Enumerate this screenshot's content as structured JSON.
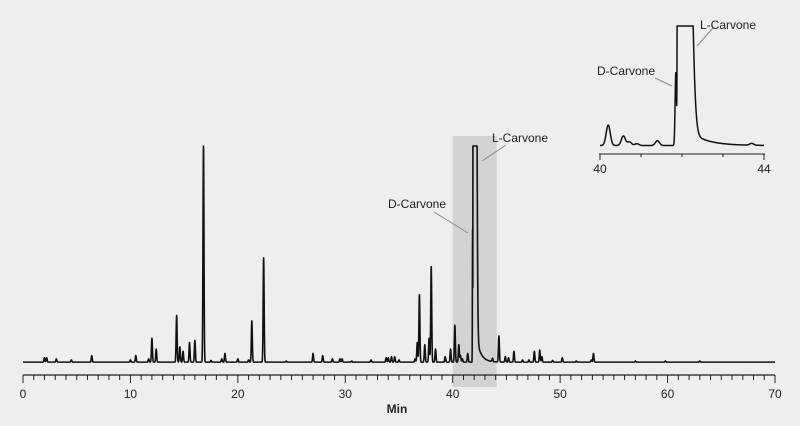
{
  "chart_data": [
    {
      "type": "line",
      "xlabel": "Min",
      "ylabel": "",
      "xlim": [
        0,
        70
      ],
      "ylim": [
        0,
        100
      ],
      "x_major_ticks": [
        0,
        10,
        20,
        30,
        40,
        50,
        60,
        70
      ],
      "x_minor_tick_step": 1,
      "grid": false,
      "y_axis_shown": false,
      "highlight_region": {
        "x": [
          40.0,
          44.1
        ],
        "color": "#d3d3d3"
      },
      "annotations": [
        {
          "label": "D-Carvone",
          "x": 41.85
        },
        {
          "label": "L-Carvone",
          "x": 42.1
        }
      ],
      "peaks": [
        [
          2.0,
          2
        ],
        [
          2.2,
          2
        ],
        [
          3.1,
          1.5
        ],
        [
          4.5,
          1
        ],
        [
          6.4,
          3
        ],
        [
          10.0,
          1
        ],
        [
          10.5,
          3
        ],
        [
          11.7,
          1.5
        ],
        [
          12.0,
          11
        ],
        [
          12.4,
          6
        ],
        [
          14.3,
          21.5
        ],
        [
          14.6,
          7
        ],
        [
          14.9,
          5
        ],
        [
          15.5,
          9
        ],
        [
          16.0,
          10
        ],
        [
          16.8,
          100
        ],
        [
          17.5,
          0.8
        ],
        [
          18.5,
          1.5
        ],
        [
          18.8,
          4
        ],
        [
          20.0,
          1.5
        ],
        [
          21.0,
          1
        ],
        [
          21.3,
          19
        ],
        [
          22.4,
          48
        ],
        [
          24.5,
          0.5
        ],
        [
          27.0,
          4
        ],
        [
          27.9,
          3
        ],
        [
          28.8,
          1.5
        ],
        [
          29.5,
          1.5
        ],
        [
          29.7,
          1.5
        ],
        [
          30.6,
          0.5
        ],
        [
          32.4,
          1
        ],
        [
          33.8,
          2
        ],
        [
          34.0,
          2
        ],
        [
          34.3,
          2.5
        ],
        [
          34.6,
          2.5
        ],
        [
          35.0,
          1
        ],
        [
          36.5,
          1.5
        ],
        [
          36.7,
          9
        ],
        [
          36.9,
          31
        ],
        [
          37.4,
          8
        ],
        [
          37.8,
          11
        ],
        [
          38.0,
          44
        ],
        [
          38.4,
          6
        ],
        [
          39.3,
          2.5
        ],
        [
          39.8,
          6
        ],
        [
          40.2,
          17
        ],
        [
          40.57,
          8
        ],
        [
          40.72,
          3
        ],
        [
          40.9,
          1.5
        ],
        [
          41.4,
          4
        ],
        [
          41.85,
          61
        ],
        [
          43.7,
          1.5
        ],
        [
          44.3,
          12
        ],
        [
          44.9,
          2.5
        ],
        [
          45.2,
          2
        ],
        [
          45.7,
          5
        ],
        [
          46.5,
          1
        ],
        [
          47.1,
          1
        ],
        [
          47.6,
          5
        ],
        [
          48.1,
          5.5
        ],
        [
          48.3,
          2.5
        ],
        [
          49.3,
          0.8
        ],
        [
          50.2,
          2
        ],
        [
          51.5,
          0.5
        ],
        [
          52.9,
          1
        ],
        [
          53.1,
          4
        ],
        [
          57.0,
          0.5
        ],
        [
          59.8,
          0.5
        ],
        [
          63.0,
          0.5
        ]
      ],
      "broad_peaks": [
        {
          "name": "L-Carvone",
          "start": 41.89,
          "end": 42.1,
          "height": 100,
          "off_scale": true
        }
      ]
    },
    {
      "type": "line",
      "xlim": [
        40,
        44
      ],
      "ylim": [
        0,
        100
      ],
      "x_tick_labels": [
        "40",
        "44"
      ],
      "x_tick_step": 1,
      "grid": false,
      "position": "top-right inset",
      "annotations": [
        {
          "label": "D-Carvone",
          "x": 41.85
        },
        {
          "label": "L-Carvone",
          "x": 42.1
        }
      ]
    }
  ]
}
